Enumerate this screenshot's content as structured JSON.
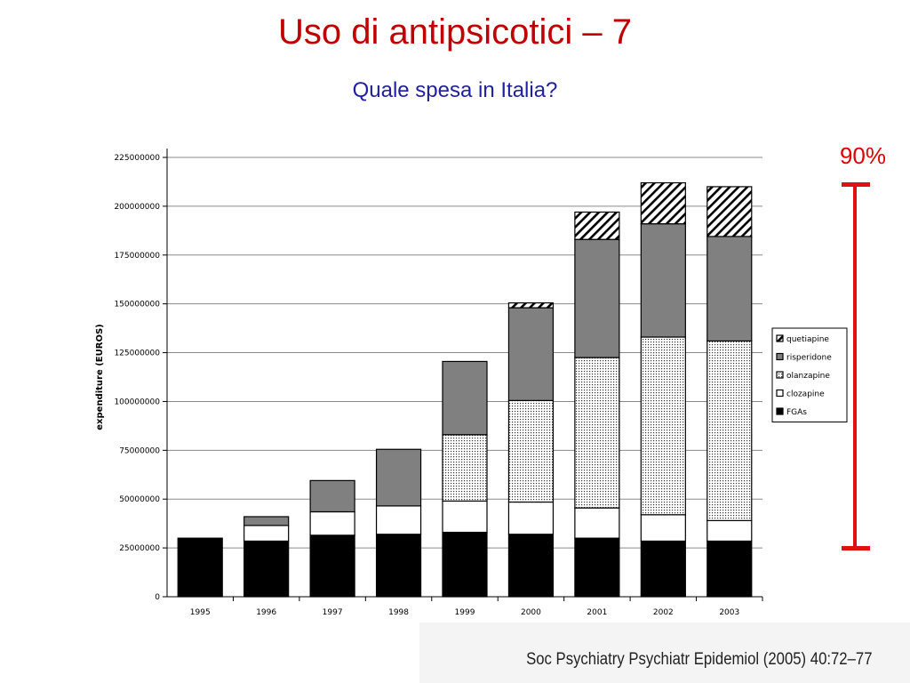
{
  "slide": {
    "title": "Uso di antipsicotici – 7",
    "subtitle": "Quale spesa in Italia?",
    "percent_label": "90%",
    "citation": "Soc Psychiatry Psychiatr Epidemiol (2005) 40:72–77"
  },
  "chart_data": {
    "type": "bar",
    "stacked": true,
    "ylabel": "expenditure (EUROS)",
    "xlabel": "",
    "ylim": [
      0,
      225000000
    ],
    "yticks": [
      0,
      25000000,
      50000000,
      75000000,
      100000000,
      125000000,
      150000000,
      175000000,
      200000000,
      225000000
    ],
    "grid": true,
    "legend_position": "right",
    "categories": [
      "1995",
      "1996",
      "1997",
      "1998",
      "1999",
      "2000",
      "2001",
      "2002",
      "2003"
    ],
    "series": [
      {
        "name": "FGAs",
        "pattern": "solid-black",
        "values": [
          30000000,
          28500000,
          31500000,
          32000000,
          33000000,
          32000000,
          30000000,
          28500000,
          28500000
        ]
      },
      {
        "name": "clozapine",
        "pattern": "white",
        "values": [
          0,
          8000000,
          12000000,
          14500000,
          16000000,
          16500000,
          15500000,
          13500000,
          10500000
        ]
      },
      {
        "name": "olanzapine",
        "pattern": "dotted",
        "values": [
          0,
          0,
          0,
          0,
          34000000,
          52000000,
          77000000,
          91000000,
          92000000
        ]
      },
      {
        "name": "risperidone",
        "pattern": "gray",
        "values": [
          0,
          4500000,
          16000000,
          29000000,
          37500000,
          47500000,
          60500000,
          58000000,
          53500000
        ]
      },
      {
        "name": "quetiapine",
        "pattern": "hatched",
        "values": [
          0,
          0,
          0,
          0,
          0,
          2500000,
          14000000,
          21000000,
          25500000
        ]
      }
    ],
    "legend_order": [
      "quetiapine",
      "risperidone",
      "olanzapine",
      "clozapine",
      "FGAs"
    ],
    "colors": {
      "FGAs": "#000000",
      "clozapine": "#ffffff",
      "olanzapine": "#d0d0d0",
      "risperidone": "#808080",
      "quetiapine": "#ffffff",
      "accent": "#dd0000",
      "title": "#c00000",
      "subtitle": "#1f1f9f"
    }
  }
}
